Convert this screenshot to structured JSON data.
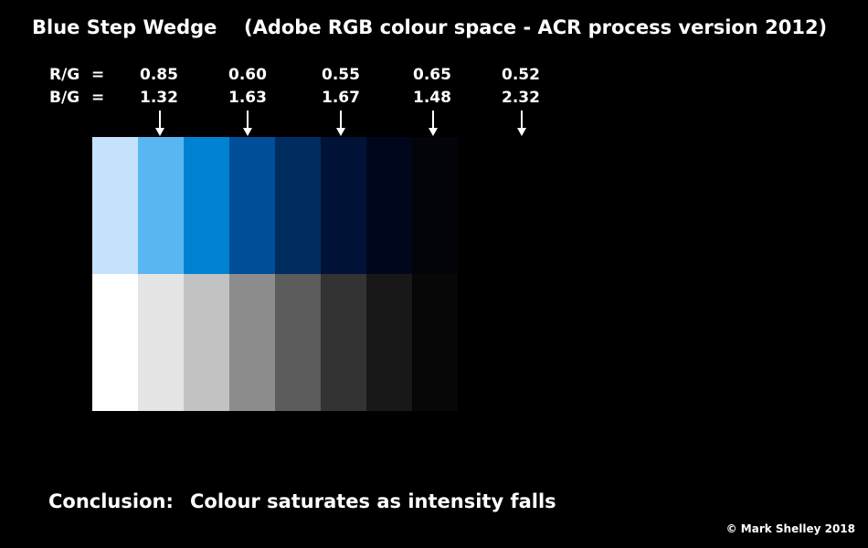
{
  "title": "Blue Step Wedge",
  "subtitle": "(Adobe RGB colour space  -  ACR process version 2012)",
  "ratios": {
    "rg": {
      "label": "R/G",
      "eq": "=",
      "values": [
        "0.85",
        "0.60",
        "0.55",
        "0.65",
        "0.52"
      ]
    },
    "bg": {
      "label": "B/G",
      "eq": "=",
      "values": [
        "1.32",
        "1.63",
        "1.67",
        "1.48",
        "2.32"
      ]
    }
  },
  "wedge": {
    "blue_steps": [
      "#c5e2fd",
      "#5ab6f3",
      "#0082d2",
      "#004f98",
      "#002c60",
      "#001337",
      "#00061b",
      "#02040a"
    ],
    "grey_steps": [
      "#ffffff",
      "#e5e5e5",
      "#c2c2c2",
      "#8d8d8d",
      "#5c5c5c",
      "#333333",
      "#181818",
      "#070707"
    ],
    "arrow_color": "#ffffff"
  },
  "conclusion": {
    "label": "Conclusion:",
    "text": "Colour saturates as intensity falls"
  },
  "copyright": "© Mark Shelley 2018"
}
